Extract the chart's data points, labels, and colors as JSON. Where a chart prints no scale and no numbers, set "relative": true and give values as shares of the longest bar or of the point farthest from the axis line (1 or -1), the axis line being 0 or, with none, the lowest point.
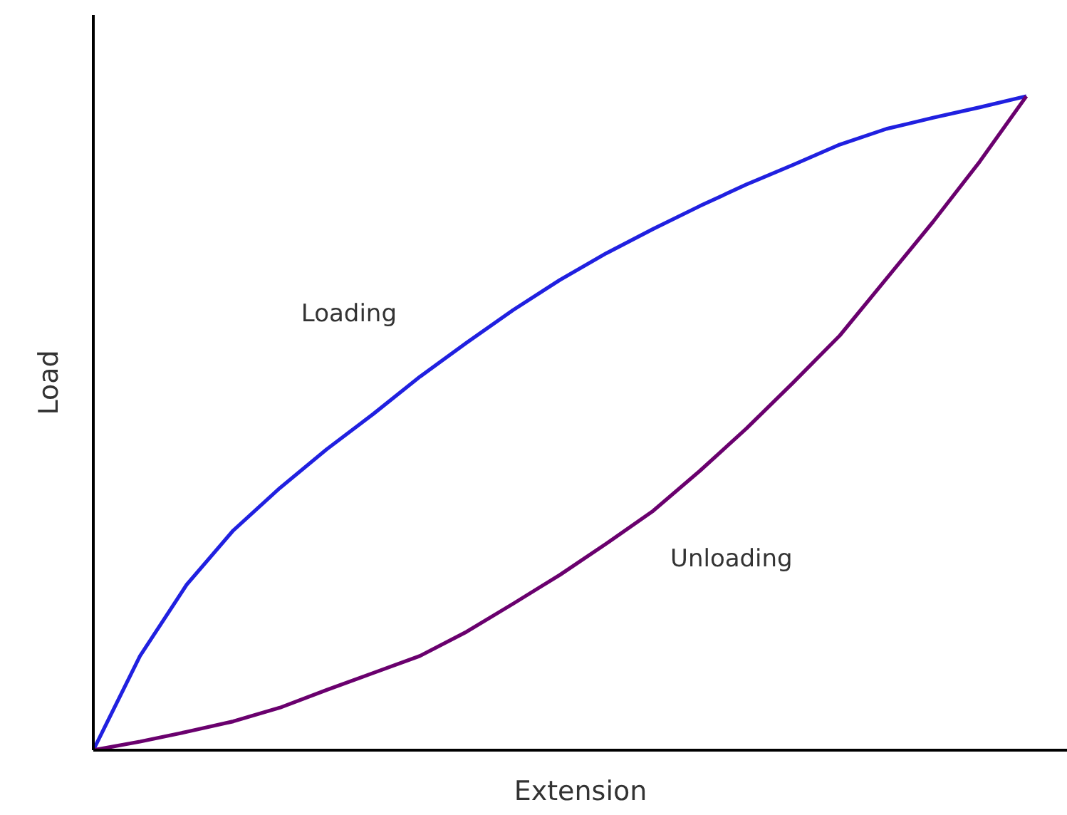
{
  "chart_data": {
    "type": "line",
    "relative": true,
    "xlabel": "Extension",
    "ylabel": "Load",
    "categories": [
      null,
      null,
      null,
      null,
      null,
      null,
      null,
      null,
      null,
      null,
      null,
      null,
      null,
      null,
      null,
      null,
      null,
      null,
      null,
      null,
      null
    ],
    "series": [
      {
        "name": "Loading",
        "color": "#2020e0",
        "values": [
          0,
          0.144,
          0.253,
          0.336,
          0.401,
          0.46,
          0.514,
          0.571,
          0.623,
          0.673,
          0.719,
          0.76,
          0.797,
          0.832,
          0.865,
          0.895,
          0.926,
          0.95,
          0.967,
          0.983,
          1
        ]
      },
      {
        "name": "Unloading",
        "color": "#6a006e",
        "values": [
          0,
          0.013,
          0.028,
          0.044,
          0.065,
          0.092,
          0.118,
          0.144,
          0.181,
          0.224,
          0.268,
          0.316,
          0.366,
          0.427,
          0.492,
          0.562,
          0.634,
          0.721,
          0.808,
          0.9,
          1
        ]
      }
    ]
  }
}
